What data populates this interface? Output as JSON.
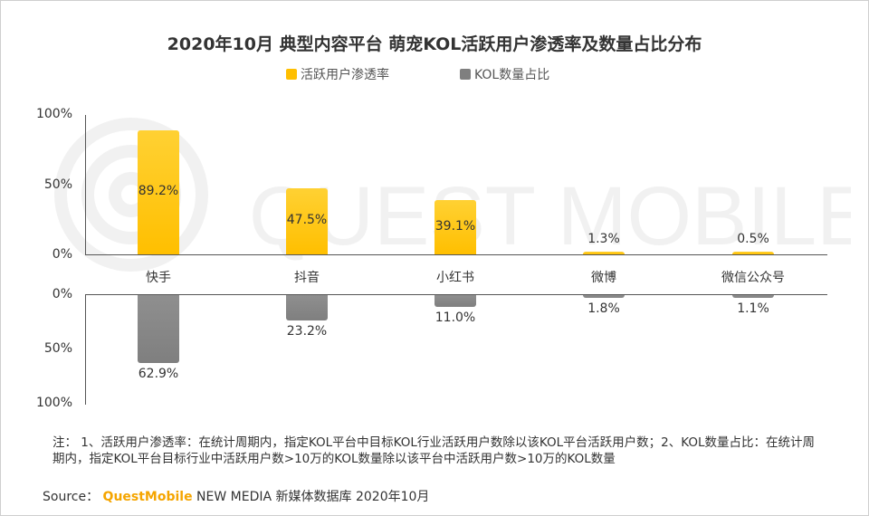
{
  "title": "2020年10月 典型内容平台 萌宠KOL活跃用户渗透率及数量占比分布",
  "colors": {
    "top": "#ffbf00",
    "top_light": "#ffd133",
    "bottom": "#7f7f7f",
    "bottom_light": "#8f8f8f"
  },
  "note": "注： 1、活跃用户渗透率：在统计周期内，指定KOL平台中目标KOL行业活跃用户数除以该KOL平台活跃用户数；2、KOL数量占比：在统计周期内，指定KOL平台目标行业中活跃用户数>10万的KOL数量除以该平台中活跃用户数>10万的KOL数量",
  "source": {
    "label": "Source：",
    "brand": "QuestMobile",
    "rest": " NEW MEDIA 新媒体数据库 2020年10月"
  },
  "chart_data": [
    {
      "type": "bar",
      "categories": [
        "快手",
        "抖音",
        "小红书",
        "微博",
        "微信公众号"
      ],
      "series": [
        {
          "name": "活跃用户渗透率",
          "values": [
            89.2,
            47.5,
            39.1,
            1.3,
            0.5
          ],
          "labels": [
            "89.2%",
            "47.5%",
            "39.1%",
            "1.3%",
            "0.5%"
          ]
        }
      ],
      "ylim": [
        0,
        100
      ],
      "yticks": [
        "100%",
        "50%",
        "0%"
      ]
    },
    {
      "type": "bar",
      "orientation": "downward",
      "categories": [
        "快手",
        "抖音",
        "小红书",
        "微博",
        "微信公众号"
      ],
      "series": [
        {
          "name": "KOL数量占比",
          "values": [
            62.9,
            23.2,
            11.0,
            1.8,
            1.1
          ],
          "labels": [
            "62.9%",
            "23.2%",
            "11.0%",
            "1.8%",
            "1.1%"
          ]
        }
      ],
      "ylim": [
        0,
        100
      ],
      "yticks": [
        "0%",
        "50%",
        "100%"
      ]
    }
  ]
}
